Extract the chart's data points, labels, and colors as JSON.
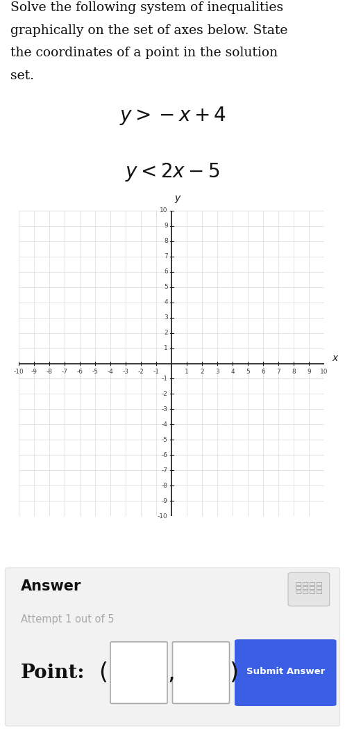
{
  "page_bg": "#ffffff",
  "header_text_lines": [
    "Solve the following system of inequalities",
    "graphically on the set of axes below. State",
    "the coordinates of a point in the solution",
    "set."
  ],
  "eq1": "$y > -x + 4$",
  "eq2": "$y < 2x - 5$",
  "axis_range": [
    -10,
    10
  ],
  "grid_color": "#d0d0d0",
  "grid_lw": 0.4,
  "axis_color": "#1a1a1a",
  "tick_color": "#444444",
  "tick_fontsize": 6.5,
  "axis_label_fontsize": 10,
  "answer_title": "Answer",
  "attempt_text": "Attempt 1 out of 5",
  "point_label": "Point:",
  "submit_button_text": "Submit Answer",
  "submit_button_color": "#3a5fe5",
  "submit_button_text_color": "#ffffff",
  "header_fontsize": 13.5,
  "eq_fontsize": 20,
  "answer_title_fontsize": 15,
  "attempt_fontsize": 10.5,
  "point_fontsize": 20,
  "answer_box_bg": "#f2f2f2",
  "answer_box_edge": "#e0e0e0"
}
